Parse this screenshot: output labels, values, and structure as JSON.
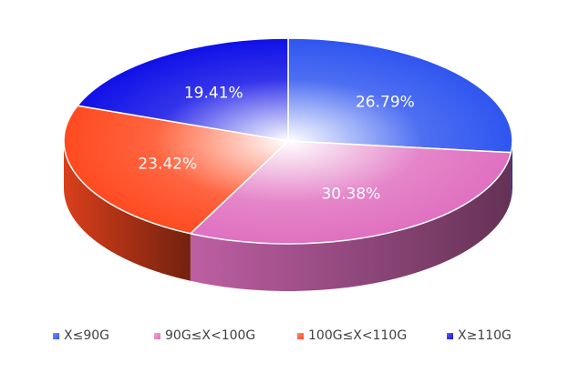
{
  "chart_data": {
    "type": "pie",
    "title": "",
    "categories": [
      "X≤90G",
      "90G≤X<100G",
      "100G≤X<110G",
      "X≥110G"
    ],
    "values": [
      26.79,
      30.38,
      23.42,
      19.41
    ],
    "labels": [
      "26.79%",
      "30.38%",
      "23.42%",
      "19.41%"
    ],
    "colors": [
      "#2f55f0",
      "#e070c0",
      "#ff4a20",
      "#1010e8"
    ],
    "legend_position": "bottom",
    "style": "3d"
  }
}
